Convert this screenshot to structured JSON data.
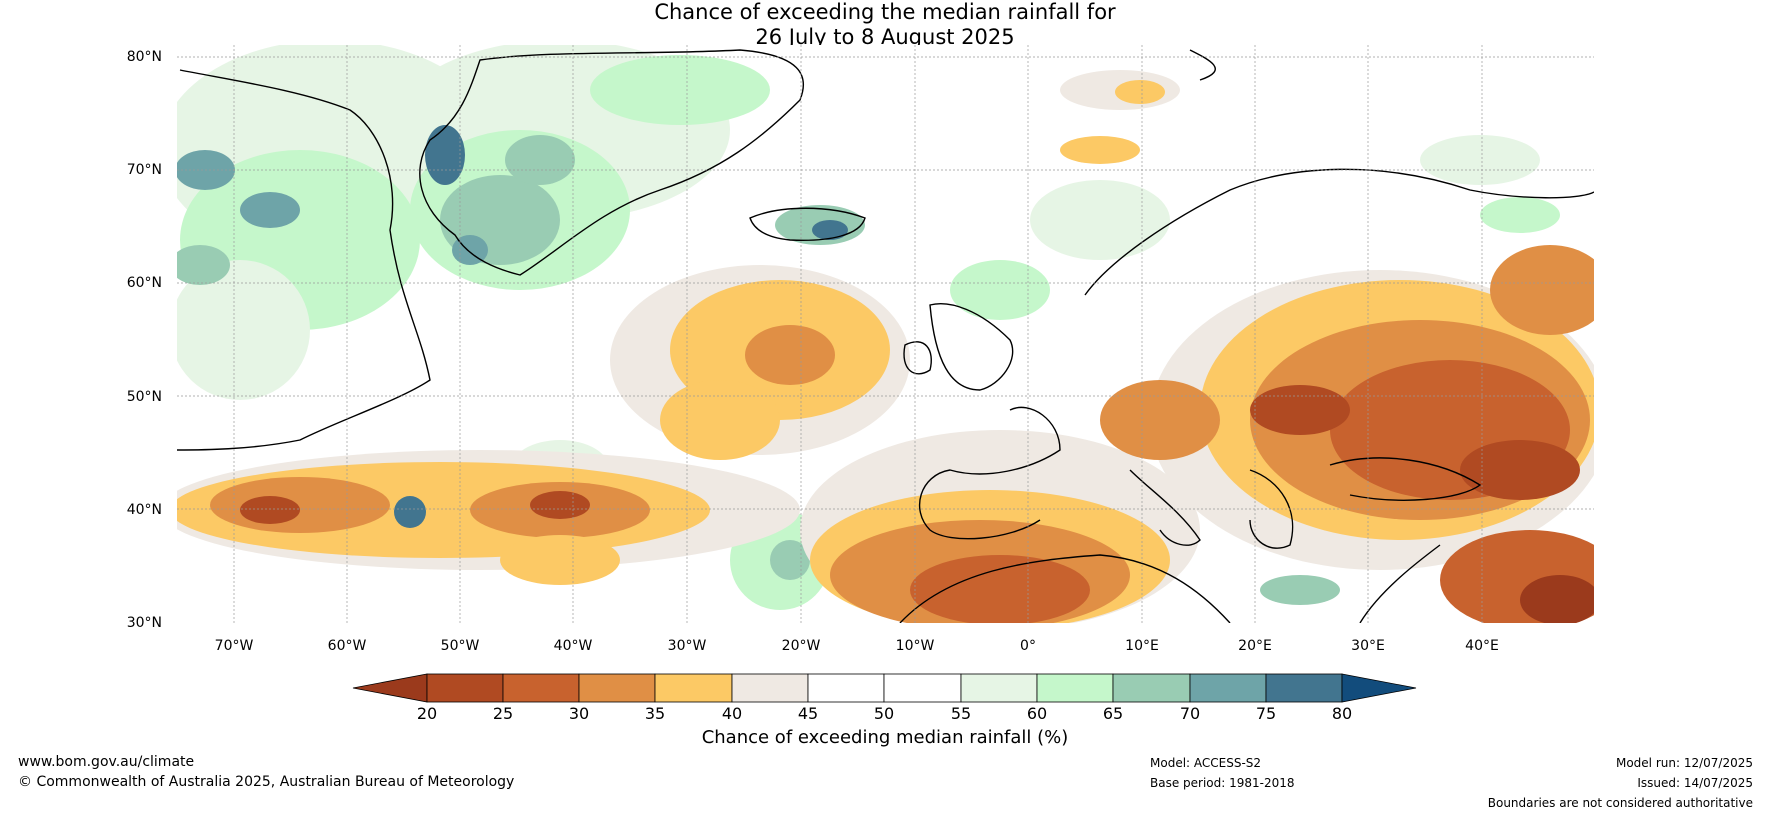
{
  "title": {
    "line1": "Chance of exceeding the median rainfall for",
    "line2": "26 July to 8 August 2025"
  },
  "map": {
    "lat_labels": [
      "80°N",
      "70°N",
      "60°N",
      "50°N",
      "40°N",
      "30°N"
    ],
    "lon_labels": [
      "70°W",
      "60°W",
      "50°W",
      "40°W",
      "30°W",
      "20°W",
      "10°W",
      "0°",
      "10°E",
      "20°E",
      "30°E",
      "40°E"
    ]
  },
  "colorbar": {
    "title": "Chance of exceeding median rainfall (%)",
    "ticks": [
      "20",
      "25",
      "30",
      "35",
      "40",
      "45",
      "50",
      "55",
      "60",
      "65",
      "70",
      "75",
      "80"
    ],
    "colors": {
      "below_20": "#9b3a1c",
      "20_25": "#b04a22",
      "25_30": "#c8622e",
      "30_35": "#e08f45",
      "35_40": "#fcc965",
      "40_45": "#efe9e3",
      "45_50": "#ffffff",
      "50_55": "#ffffff",
      "55_60": "#e6f5e5",
      "60_65": "#c5f7cb",
      "65_70": "#99ccb3",
      "70_75": "#6ea4a8",
      "75_80": "#42758f",
      "above_80": "#124c7c"
    }
  },
  "footer": {
    "website": "www.bom.gov.au/climate",
    "copyright": "© Commonwealth of Australia 2025, Australian Bureau of Meteorology",
    "model": "Model: ACCESS-S2",
    "base_period": "Base period: 1981-2018",
    "model_run": "Model run: 12/07/2025",
    "issued": "Issued: 14/07/2025",
    "disclaimer": "Boundaries are not considered authoritative"
  }
}
